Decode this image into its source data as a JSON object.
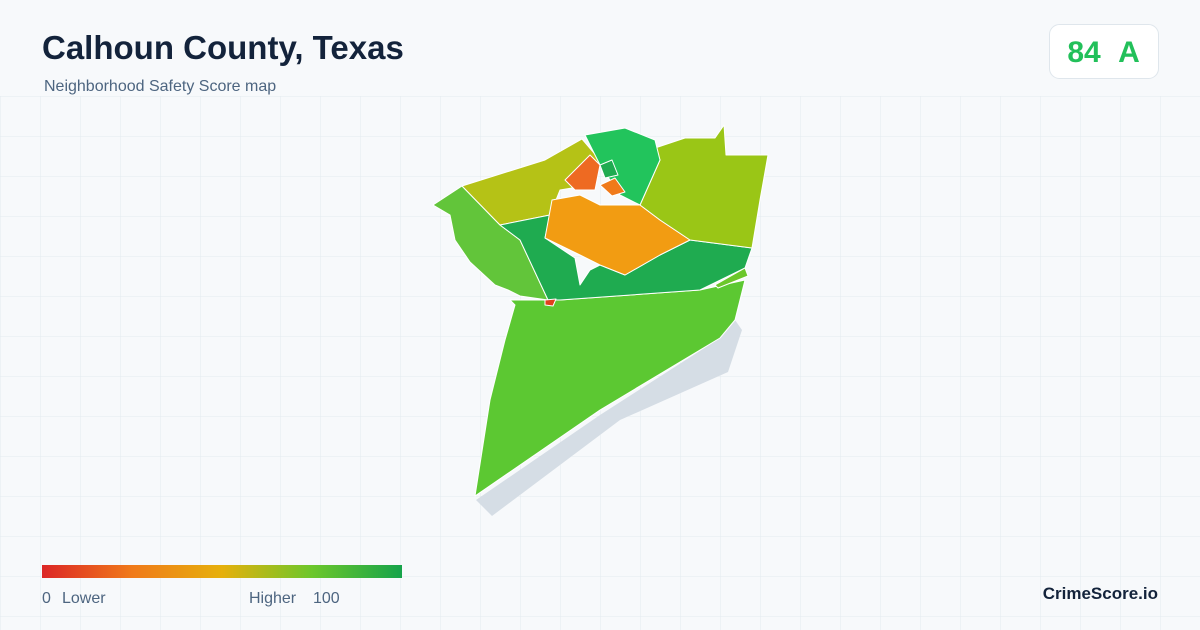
{
  "header": {
    "title": "Calhoun County, Texas",
    "subtitle": "Neighborhood Safety Score map"
  },
  "score": {
    "value": "84",
    "grade": "A"
  },
  "legend": {
    "min": "0",
    "min_label": "Lower",
    "max_label": "Higher",
    "max": "100"
  },
  "brand": "CrimeScore.io"
}
